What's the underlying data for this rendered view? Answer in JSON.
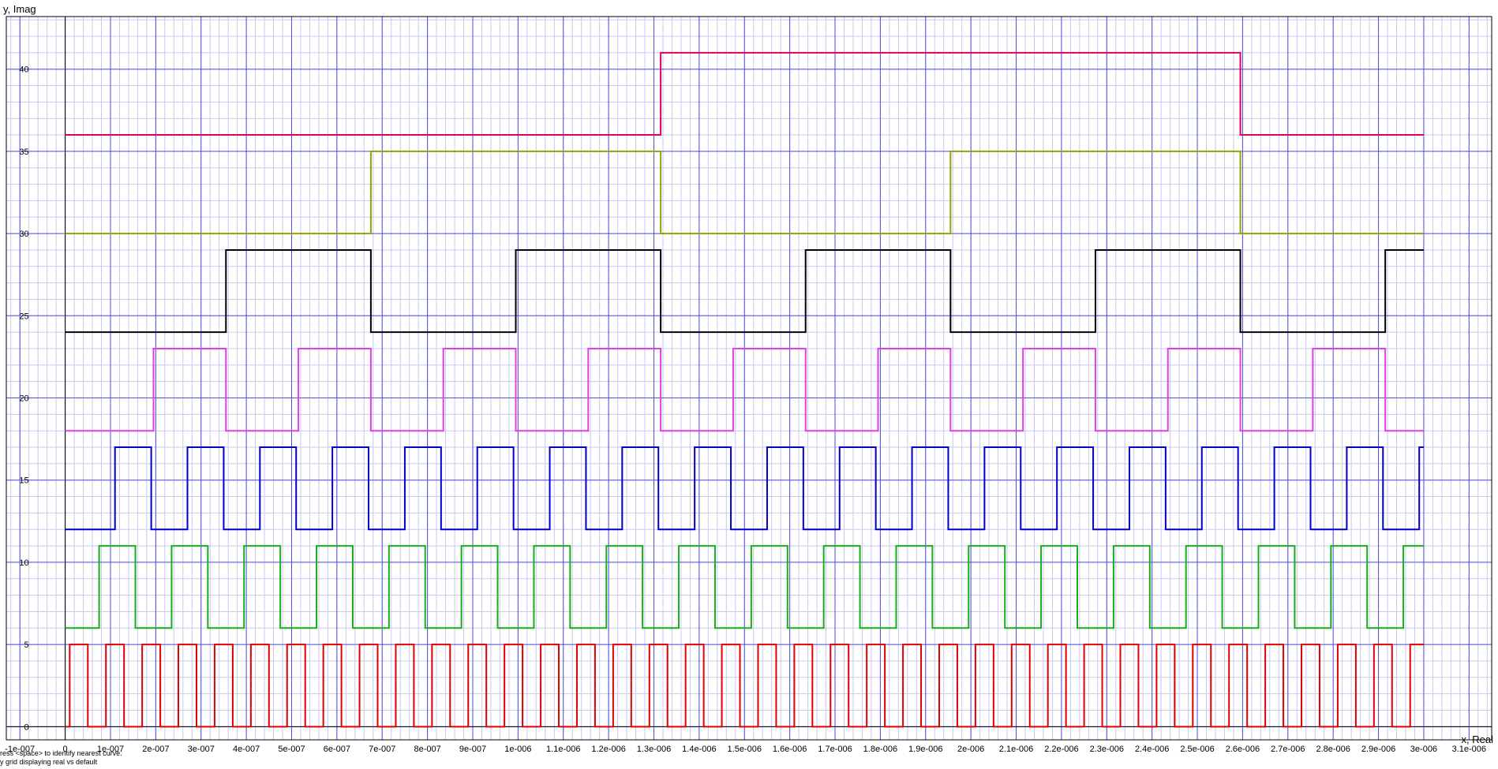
{
  "window": {
    "status_lines": [
      "ress <space> to identify nearest curve.",
      "y grid displaying real vs default"
    ]
  },
  "chart_data": {
    "type": "line",
    "xlabel": "x, Real",
    "ylabel": "y, Imag",
    "xlim": [
      -1.3e-07,
      3.15e-06
    ],
    "ylim": [
      -0.8,
      43.2
    ],
    "x_ticks": [
      -1e-07,
      0,
      1e-07,
      2e-07,
      3e-07,
      4e-07,
      5e-07,
      6e-07,
      7e-07,
      8e-07,
      9e-07,
      1e-06,
      1.1e-06,
      1.2e-06,
      1.3e-06,
      1.4e-06,
      1.5e-06,
      1.6e-06,
      1.7e-06,
      1.8e-06,
      1.9e-06,
      2e-06,
      2.1e-06,
      2.2e-06,
      2.3e-06,
      2.4e-06,
      2.5e-06,
      2.6e-06,
      2.7e-06,
      2.8e-06,
      2.9e-06,
      3e-06,
      3.1e-06
    ],
    "x_tick_labels": [
      "-1e-007",
      "0",
      "1e-007",
      "2e-007",
      "3e-007",
      "4e-007",
      "5e-007",
      "6e-007",
      "7e-007",
      "8e-007",
      "9e-007",
      "1e-006",
      "1.1e-006",
      "1.2e-006",
      "1.3e-006",
      "1.4e-006",
      "1.5e-006",
      "1.6e-006",
      "1.7e-006",
      "1.8e-006",
      "1.9e-006",
      "2e-006",
      "2.1e-006",
      "2.2e-006",
      "2.3e-006",
      "2.4e-006",
      "2.5e-006",
      "2.6e-006",
      "2.7e-006",
      "2.8e-006",
      "2.9e-006",
      "3e-006",
      "3.1e-006"
    ],
    "y_ticks": [
      0,
      5,
      10,
      15,
      20,
      25,
      30,
      35,
      40
    ],
    "y_tick_labels": [
      "0",
      "5",
      "10",
      "15",
      "20",
      "25",
      "30",
      "35",
      "40"
    ],
    "grid": true,
    "minor_grid_divisions": 5,
    "colors": {
      "major_grid": "#4f4fe0",
      "minor_grid": "#c8c8f0",
      "axis": "#000000"
    },
    "series": [
      {
        "color": "#e00000",
        "x_start": 0,
        "x_end": 3e-06,
        "low": 0,
        "high": 5,
        "half_period": 4e-08,
        "first_rise": 1e-08,
        "initial": "low",
        "transitions": []
      },
      {
        "color": "#16b016",
        "x_start": 0,
        "x_end": 3e-06,
        "low": 6,
        "high": 11,
        "half_period": 8e-08,
        "first_rise": 7.5e-08,
        "initial": "low",
        "transitions": []
      },
      {
        "color": "#0000c8",
        "x_start": 0,
        "x_end": 3e-06,
        "low": 12,
        "high": 17,
        "half_period": 8e-08,
        "first_rise": 1.1e-07,
        "initial": "low",
        "transitions": []
      },
      {
        "color": "#e040e0",
        "x_start": 0,
        "x_end": 3e-06,
        "low": 18,
        "high": 23,
        "half_period": 1.6e-07,
        "first_rise": 1.95e-07,
        "initial": "low",
        "transitions": []
      },
      {
        "color": "#000000",
        "x_start": 0,
        "x_end": 3e-06,
        "low": 24,
        "high": 29,
        "half_period": 3.2e-07,
        "first_rise": 3.55e-07,
        "initial": "low",
        "transitions": []
      },
      {
        "color": "#9aa000",
        "x_start": 0,
        "x_end": 3e-06,
        "low": 30,
        "high": 35,
        "half_period": 0,
        "first_rise": 0,
        "initial": "low",
        "transitions": [
          6.75e-07,
          1.315e-06,
          1.955e-06,
          2.595e-06
        ]
      },
      {
        "color": "#e0005a",
        "x_start": 0,
        "x_end": 3e-06,
        "low": 36,
        "high": 41,
        "half_period": 0,
        "first_rise": 0,
        "initial": "low",
        "transitions": [
          1.315e-06,
          2.595e-06
        ]
      }
    ]
  }
}
